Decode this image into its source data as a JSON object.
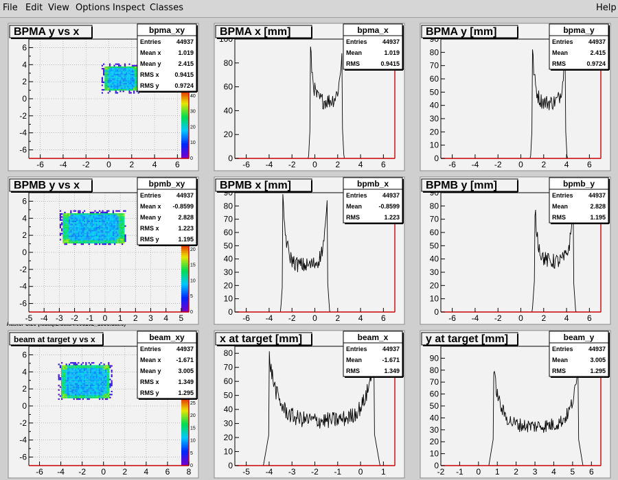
{
  "menubar": {
    "items": [
      {
        "id": "file",
        "label": "File"
      },
      {
        "id": "edit",
        "label": "Edit"
      },
      {
        "id": "view",
        "label": "View"
      },
      {
        "id": "options",
        "label": "Options"
      },
      {
        "id": "inspect",
        "label": "Inspect"
      },
      {
        "id": "classes",
        "label": "Classes"
      }
    ],
    "help_label": "Help"
  },
  "raster_caption": "Raster Size (/adaql2/data4/e05102_1856.dat.0)",
  "colors": {
    "pad_bg": "#f2f2f2",
    "frame": "#000000",
    "axis_red": "#cc0000",
    "grid": "#999999",
    "hist": "#000000"
  },
  "chart_data": [
    {
      "id": "bpma_xy",
      "type": "heatmap",
      "title": "BPMA y vs x",
      "xlim": [
        -7,
        7
      ],
      "ylim": [
        -7,
        7
      ],
      "xticks": [
        -6,
        -4,
        -2,
        0,
        2,
        4,
        6
      ],
      "yticks": [
        -6,
        -5,
        -4,
        -3,
        -2,
        -1,
        0,
        1,
        2,
        3,
        4,
        5,
        6
      ],
      "ytick_labels": [
        -6,
        -4,
        -2,
        0,
        2,
        4,
        6
      ],
      "xlabel": "",
      "ylabel": "",
      "grid": true,
      "blob": {
        "x": [
          -0.4,
          2.4
        ],
        "y": [
          1.0,
          3.9
        ]
      },
      "colorbar": {
        "labels": [
          0,
          10,
          20,
          30,
          40
        ]
      },
      "stats": {
        "name": "bpma_xy",
        "rows": [
          [
            "Entries",
            "44937"
          ],
          [
            "Mean x",
            "1.019"
          ],
          [
            "Mean y",
            "2.415"
          ],
          [
            "RMS x",
            "0.9415"
          ],
          [
            "RMS y",
            "0.9724"
          ]
        ]
      }
    },
    {
      "id": "bpma_x",
      "type": "line",
      "title": "BPMA x [mm]",
      "xlim": [
        -7,
        7
      ],
      "ylim": [
        0,
        100
      ],
      "xticks": [
        -6,
        -4,
        -2,
        0,
        2,
        4,
        6
      ],
      "yticks": [
        0,
        20,
        40,
        60,
        80,
        100
      ],
      "xlabel": "",
      "ylabel": "",
      "profile": {
        "lo": -0.4,
        "hi": 2.4,
        "edge": 0.15,
        "peak": 97,
        "base": 48,
        "noise": 7
      },
      "stats": {
        "name": "bpma_x",
        "rows": [
          [
            "Entries",
            "44937"
          ],
          [
            "Mean",
            "1.019"
          ],
          [
            "RMS",
            "0.9415"
          ]
        ]
      }
    },
    {
      "id": "bpma_y",
      "type": "line",
      "title": "BPMA y [mm]",
      "xlim": [
        -7,
        7
      ],
      "ylim": [
        0,
        90
      ],
      "xticks": [
        -6,
        -4,
        -2,
        0,
        2,
        4,
        6
      ],
      "yticks": [
        0,
        10,
        20,
        30,
        40,
        50,
        60,
        70,
        80,
        90
      ],
      "xlabel": "",
      "ylabel": "",
      "profile": {
        "lo": 1.0,
        "hi": 3.9,
        "edge": 0.15,
        "peak": 85,
        "base": 42,
        "noise": 6
      },
      "stats": {
        "name": "bpma_y",
        "rows": [
          [
            "Entries",
            "44937"
          ],
          [
            "Mean",
            "2.415"
          ],
          [
            "RMS",
            "0.9724"
          ]
        ]
      }
    },
    {
      "id": "bpmb_xy",
      "type": "heatmap",
      "title": "BPMB y vs x",
      "xlim": [
        -5,
        5.5
      ],
      "ylim": [
        -7,
        7
      ],
      "xticks": [
        -5,
        -4,
        -3,
        -2,
        -1,
        0,
        1,
        2,
        3,
        4,
        5
      ],
      "yticks": [
        -6,
        -5,
        -4,
        -3,
        -2,
        -1,
        0,
        1,
        2,
        3,
        4,
        5,
        6
      ],
      "ytick_labels": [
        -6,
        -4,
        -2,
        0,
        2,
        4,
        6
      ],
      "xlabel": "",
      "ylabel": "",
      "grid": true,
      "blob": {
        "x": [
          -2.8,
          1.2
        ],
        "y": [
          1.2,
          4.7
        ]
      },
      "colorbar": {
        "labels": [
          0,
          5,
          10,
          15,
          20
        ]
      },
      "stats": {
        "name": "bpmb_xy",
        "rows": [
          [
            "Entries",
            "44937"
          ],
          [
            "Mean x",
            "-0.8599"
          ],
          [
            "Mean y",
            "2.828"
          ],
          [
            "RMS x",
            "1.223"
          ],
          [
            "RMS y",
            "1.195"
          ]
        ]
      }
    },
    {
      "id": "bpmb_x",
      "type": "line",
      "title": "BPMB x [mm]",
      "xlim": [
        -7,
        7
      ],
      "ylim": [
        0,
        90
      ],
      "xticks": [
        -6,
        -4,
        -2,
        0,
        2,
        4,
        6
      ],
      "yticks": [
        0,
        10,
        20,
        30,
        40,
        50,
        60,
        70,
        80,
        90
      ],
      "xlabel": "",
      "ylabel": "",
      "profile": {
        "lo": -2.8,
        "hi": 1.1,
        "edge": 0.2,
        "peak": 84,
        "base": 35,
        "noise": 6
      },
      "stats": {
        "name": "bpmb_x",
        "rows": [
          [
            "Entries",
            "44937"
          ],
          [
            "Mean",
            "-0.8599"
          ],
          [
            "RMS",
            "1.223"
          ]
        ]
      }
    },
    {
      "id": "bpmb_y",
      "type": "line",
      "title": "BPMB y [mm]",
      "xlim": [
        -7,
        7
      ],
      "ylim": [
        0,
        90
      ],
      "xticks": [
        -6,
        -4,
        -2,
        0,
        2,
        4,
        6
      ],
      "yticks": [
        0,
        10,
        20,
        30,
        40,
        50,
        60,
        70,
        80,
        90
      ],
      "xlabel": "",
      "ylabel": "",
      "profile": {
        "lo": 1.2,
        "hi": 4.6,
        "edge": 0.2,
        "peak": 84,
        "base": 38,
        "noise": 6
      },
      "stats": {
        "name": "bpmb_y",
        "rows": [
          [
            "Entries",
            "44937"
          ],
          [
            "Mean",
            "2.828"
          ],
          [
            "RMS",
            "1.195"
          ]
        ]
      }
    },
    {
      "id": "beam_xy",
      "type": "heatmap",
      "title": "beam at target y vs x",
      "xlim": [
        -7,
        8
      ],
      "ylim": [
        -7,
        7
      ],
      "xticks": [
        -6,
        -4,
        -2,
        0,
        2,
        4,
        6,
        8
      ],
      "yticks": [
        -6,
        -5,
        -4,
        -3,
        -2,
        -1,
        0,
        1,
        2,
        3,
        4,
        5,
        6
      ],
      "ytick_labels": [
        -6,
        -4,
        -2,
        0,
        2,
        4,
        6
      ],
      "xlabel": "",
      "ylabel": "",
      "grid": true,
      "blob": {
        "x": [
          -4.0,
          0.5
        ],
        "y": [
          1.0,
          4.9
        ]
      },
      "colorbar": {
        "labels": [
          0,
          5,
          10,
          15,
          20,
          25
        ]
      },
      "stats": {
        "name": "beam_xy",
        "rows": [
          [
            "Entries",
            "44937"
          ],
          [
            "Mean x",
            "-1.671"
          ],
          [
            "Mean y",
            "3.005"
          ],
          [
            "RMS x",
            "1.349"
          ],
          [
            "RMS y",
            "1.295"
          ]
        ]
      }
    },
    {
      "id": "beam_x",
      "type": "line",
      "title": "x at target [mm]",
      "xlim": [
        -5.5,
        1.5
      ],
      "ylim": [
        0,
        85
      ],
      "xticks": [
        -5,
        -4,
        -3,
        -2,
        -1,
        0,
        1
      ],
      "yticks": [
        0,
        10,
        20,
        30,
        40,
        50,
        60,
        70,
        80
      ],
      "xlabel": "",
      "ylabel": "",
      "profile": {
        "lo": -4.0,
        "hi": 0.6,
        "edge": 0.25,
        "peak": 78,
        "base": 32,
        "noise": 6
      },
      "stats": {
        "name": "beam_x",
        "rows": [
          [
            "Entries",
            "44937"
          ],
          [
            "Mean",
            "-1.671"
          ],
          [
            "RMS",
            "1.349"
          ]
        ]
      }
    },
    {
      "id": "beam_y",
      "type": "line",
      "title": "y at target [mm]",
      "xlim": [
        -2,
        6.5
      ],
      "ylim": [
        0,
        100
      ],
      "xticks": [
        -2,
        -1,
        0,
        1,
        2,
        3,
        4,
        5,
        6
      ],
      "yticks": [
        0,
        10,
        20,
        30,
        40,
        50,
        60,
        70,
        80,
        90
      ],
      "xlabel": "",
      "ylabel": "",
      "profile": {
        "lo": 0.8,
        "hi": 5.3,
        "edge": 0.25,
        "peak": 80,
        "base": 33,
        "noise": 6
      },
      "stats": {
        "name": "beam_y",
        "rows": [
          [
            "Entries",
            "44937"
          ],
          [
            "Mean",
            "3.005"
          ],
          [
            "RMS",
            "1.295"
          ]
        ]
      }
    }
  ]
}
